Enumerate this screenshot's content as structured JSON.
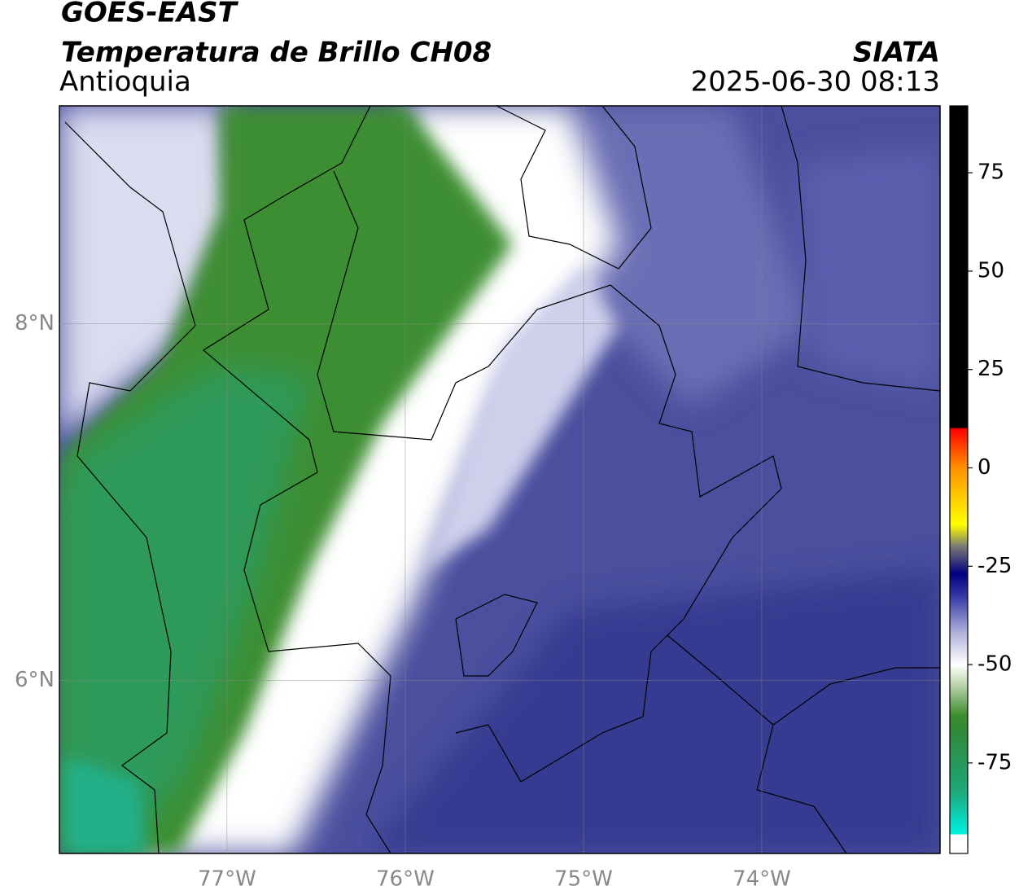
{
  "header": {
    "title": "GOES-EAST",
    "subtitle": "Temperatura de Brillo CH08",
    "region": "Antioquia",
    "source": "SIATA",
    "datetime": "2025-06-30 08:13"
  },
  "map": {
    "xlim": [
      -77.94,
      -73.0
    ],
    "ylim": [
      5.03,
      9.22
    ],
    "xticks": [
      {
        "value": -77,
        "label": "77°W"
      },
      {
        "value": -76,
        "label": "76°W"
      },
      {
        "value": -75,
        "label": "75°W"
      },
      {
        "value": -74,
        "label": "74°W"
      }
    ],
    "yticks": [
      {
        "value": 8,
        "label": "8°N"
      },
      {
        "value": 6,
        "label": "6°N"
      }
    ],
    "grid": true
  },
  "colorbar": {
    "lim": [
      -98,
      92
    ],
    "ticks": [
      75,
      50,
      25,
      0,
      -25,
      -50,
      -75
    ]
  }
}
